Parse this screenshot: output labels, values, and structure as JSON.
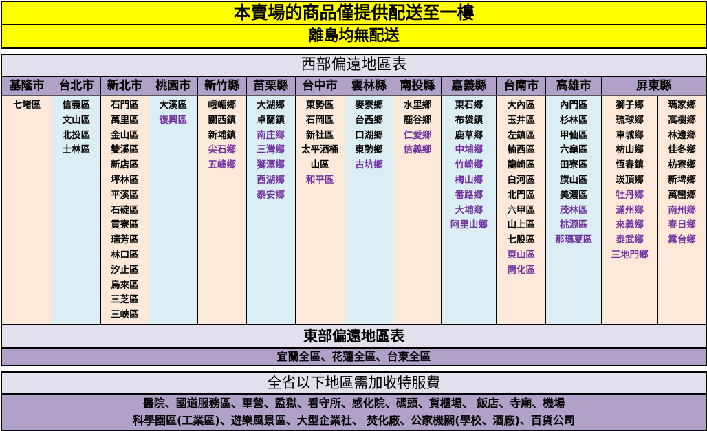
{
  "notice": {
    "line1": "本賣場的商品僅提供配送至一樓",
    "line2": "離島均無配送"
  },
  "west": {
    "title": "西部偏遠地區表",
    "colors": {
      "header": "#b1a0c7",
      "peach": "#fde9d9",
      "blue": "#daeef3",
      "remote_text": "#7030a0"
    },
    "regions": [
      {
        "name": "基隆市",
        "columns": [
          [
            {
              "n": "七堵區"
            }
          ]
        ]
      },
      {
        "name": "台北市",
        "columns": [
          [
            {
              "n": "信義區"
            },
            {
              "n": "文山區"
            },
            {
              "n": "北投區"
            },
            {
              "n": "士林區"
            }
          ]
        ]
      },
      {
        "name": "新北市",
        "columns": [
          [
            {
              "n": "石門區"
            },
            {
              "n": "萬里區"
            },
            {
              "n": "金山區"
            },
            {
              "n": "雙溪區"
            },
            {
              "n": "新店區"
            },
            {
              "n": "坪林區"
            },
            {
              "n": "平溪區"
            },
            {
              "n": "石碇區"
            },
            {
              "n": "貢寮區"
            },
            {
              "n": "瑞芳區"
            },
            {
              "n": "林口區"
            },
            {
              "n": "汐止區"
            },
            {
              "n": "烏來區"
            },
            {
              "n": "三芝區"
            },
            {
              "n": "三峽區"
            }
          ]
        ]
      },
      {
        "name": "桃園市",
        "columns": [
          [
            {
              "n": "大溪區"
            },
            {
              "n": "復興區",
              "r": true
            }
          ]
        ]
      },
      {
        "name": "新竹縣",
        "columns": [
          [
            {
              "n": "峨嵋鄉"
            },
            {
              "n": "關西鎮"
            },
            {
              "n": "新埔鎮"
            },
            {
              "n": "尖石鄉",
              "r": true
            },
            {
              "n": "五峰鄉",
              "r": true
            }
          ]
        ]
      },
      {
        "name": "苗栗縣",
        "columns": [
          [
            {
              "n": "大湖鄉"
            },
            {
              "n": "卓蘭鎮"
            },
            {
              "n": "南庄鄉",
              "r": true
            },
            {
              "n": "三灣鄉",
              "r": true
            },
            {
              "n": "獅潭鄉",
              "r": true
            },
            {
              "n": "西湖鄉",
              "r": true
            },
            {
              "n": "泰安鄉",
              "r": true
            }
          ]
        ]
      },
      {
        "name": "台中市",
        "columns": [
          [
            {
              "n": "東勢區"
            },
            {
              "n": "石岡區"
            },
            {
              "n": "新社區"
            },
            {
              "n": "太平酒桶山區"
            },
            {
              "n": "和平區",
              "r": true
            }
          ]
        ]
      },
      {
        "name": "雲林縣",
        "columns": [
          [
            {
              "n": "麥寮鄉"
            },
            {
              "n": "台西鄉"
            },
            {
              "n": "口湖鄉"
            },
            {
              "n": "東勢鄉"
            },
            {
              "n": "古坑鄉",
              "r": true
            }
          ]
        ]
      },
      {
        "name": "南投縣",
        "columns": [
          [
            {
              "n": "水里鄉"
            },
            {
              "n": "鹿谷鄉"
            },
            {
              "n": "仁愛鄉",
              "r": true
            },
            {
              "n": "信義鄉",
              "r": true
            }
          ]
        ]
      },
      {
        "name": "嘉義縣",
        "columns": [
          [
            {
              "n": "東石鄉"
            },
            {
              "n": "布袋鎮"
            },
            {
              "n": "鹿草鄉"
            },
            {
              "n": "中埔鄉",
              "r": true
            },
            {
              "n": "竹崎鄉",
              "r": true
            },
            {
              "n": "梅山鄉",
              "r": true
            },
            {
              "n": "番路鄉",
              "r": true
            },
            {
              "n": "大埔鄉",
              "r": true
            },
            {
              "n": "阿里山鄉",
              "r": true
            }
          ]
        ]
      },
      {
        "name": "台南市",
        "columns": [
          [
            {
              "n": "大內區"
            },
            {
              "n": "玉井區"
            },
            {
              "n": "左鎮區"
            },
            {
              "n": "楠西區"
            },
            {
              "n": "龍崎區"
            },
            {
              "n": "白河區"
            },
            {
              "n": "北門區"
            },
            {
              "n": "六甲區"
            },
            {
              "n": "山上區"
            },
            {
              "n": "七股區"
            },
            {
              "n": "東山區",
              "r": true
            },
            {
              "n": "南化區",
              "r": true
            }
          ]
        ]
      },
      {
        "name": "高雄市",
        "columns": [
          [
            {
              "n": "內門區"
            },
            {
              "n": "杉林區"
            },
            {
              "n": "甲仙區"
            },
            {
              "n": "六龜區"
            },
            {
              "n": "田寮區"
            },
            {
              "n": "旗山區"
            },
            {
              "n": "美濃區"
            },
            {
              "n": "茂林區",
              "r": true
            },
            {
              "n": "桃源區",
              "r": true
            },
            {
              "n": "那瑪夏區",
              "r": true
            }
          ]
        ]
      },
      {
        "name": "屏東縣",
        "columns": [
          [
            {
              "n": "獅子鄉"
            },
            {
              "n": "琉球鄉"
            },
            {
              "n": "車城鄉"
            },
            {
              "n": "枋山鄉"
            },
            {
              "n": "恆春鎮"
            },
            {
              "n": "崁頂鄉"
            },
            {
              "n": "牡丹鄉",
              "r": true
            },
            {
              "n": "滿州鄉",
              "r": true
            },
            {
              "n": "來義鄉",
              "r": true
            },
            {
              "n": "泰武鄉",
              "r": true
            },
            {
              "n": "三地門鄉",
              "r": true
            }
          ],
          [
            {
              "n": "瑪家鄉"
            },
            {
              "n": "高樹鄉"
            },
            {
              "n": "林邊鄉"
            },
            {
              "n": "佳冬鄉"
            },
            {
              "n": "枋寮鄉"
            },
            {
              "n": "新埤鄉"
            },
            {
              "n": "萬巒鄉"
            },
            {
              "n": "南州鄉",
              "r": true
            },
            {
              "n": "春日鄉",
              "r": true
            },
            {
              "n": "霧台鄉",
              "r": true
            }
          ]
        ]
      }
    ]
  },
  "east": {
    "title": "東部偏遠地區表",
    "areas": "宜蘭全區、花蓮全區、台東全區"
  },
  "surcharge": {
    "title": "全省以下地區需加收特服費",
    "line1": "醫院、國道服務區、軍營、監獄、看守所、感化院、碼頭、貨櫃場、 飯店、寺廟、機場",
    "line2": "科學園區(工業區)、遊樂風景區、大型企業社、 焚化廠、公家機關(學校、酒廠)、百貨公司"
  }
}
